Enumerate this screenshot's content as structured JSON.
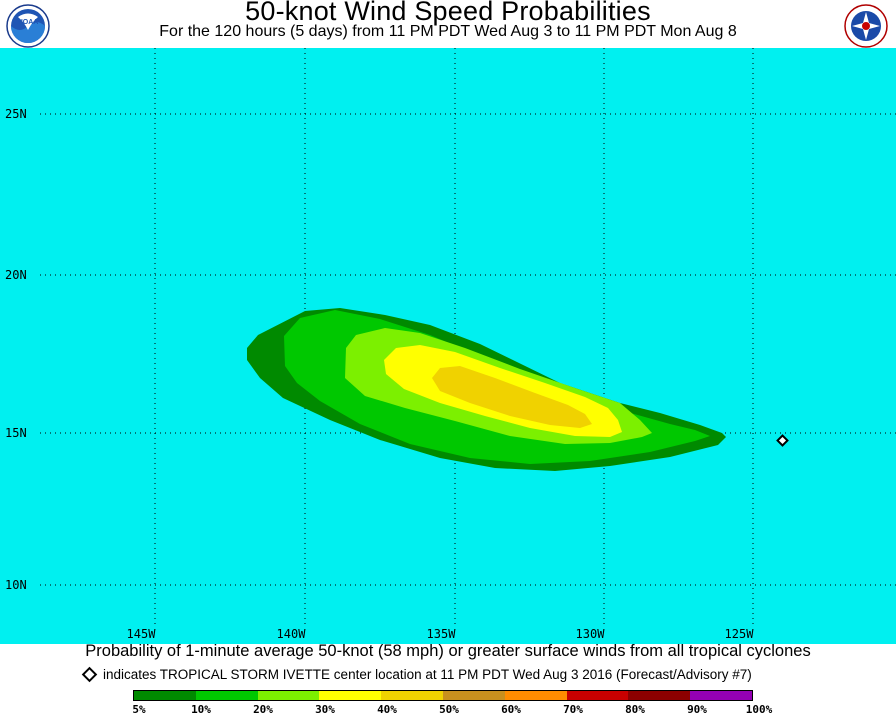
{
  "header": {
    "title": "50-knot Wind Speed Probabilities",
    "subtitle": "For the 120 hours (5 days) from 11 PM PDT Wed Aug 3 to 11 PM PDT Mon Aug 8",
    "left_logo": "NOAA",
    "right_logo": "National Weather Service"
  },
  "map": {
    "background_color": "#00f0f0",
    "lat_labels": [
      "25N",
      "20N",
      "15N",
      "10N"
    ],
    "lon_labels": [
      "145W",
      "140W",
      "135W",
      "130W",
      "125W"
    ],
    "storm_marker": {
      "name": "TROPICAL STORM IVETTE",
      "lon": -123.9,
      "lat": 14.6
    }
  },
  "caption": "Probability of 1-minute average 50-knot (58 mph) or greater surface winds from all tropical cyclones",
  "storm_note": "indicates TROPICAL STORM IVETTE center location at 11 PM PDT Wed Aug 3 2016 (Forecast/Advisory #7)",
  "legend": {
    "colors": [
      "#008a00",
      "#00c800",
      "#7cf000",
      "#ffff00",
      "#f0d200",
      "#c8901e",
      "#ff8c00",
      "#c80000",
      "#8c0000",
      "#9400b4"
    ],
    "labels": [
      "5%",
      "10%",
      "20%",
      "30%",
      "40%",
      "50%",
      "60%",
      "70%",
      "80%",
      "90%",
      "100%"
    ]
  }
}
